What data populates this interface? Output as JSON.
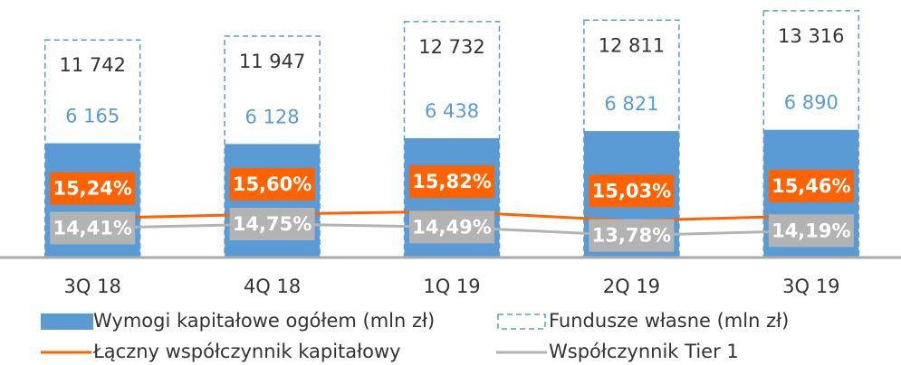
{
  "chart_data": {
    "type": "bar",
    "categories": [
      "3Q 18",
      "4Q 18",
      "1Q 19",
      "2Q 19",
      "3Q 19"
    ],
    "series": [
      {
        "name": "Wymogi kapitałowe ogółem (mln zł)",
        "color": "#5b9bd5",
        "values": [
          6165,
          6128,
          6438,
          6821,
          6890
        ],
        "value_labels": [
          "6 165",
          "6 128",
          "6 438",
          "6 821",
          "6 890"
        ]
      },
      {
        "name": "Fundusze własne (mln zł)",
        "color": "#5b9bd5",
        "style": "dashed",
        "values": [
          11742,
          11947,
          12732,
          12811,
          13316
        ],
        "value_labels": [
          "11 742",
          "11 947",
          "12 732",
          "12 811",
          "13 316"
        ]
      },
      {
        "name": "Łączny współczynnik kapitałowy",
        "color": "#ff6200",
        "type": "line",
        "axis": "y2",
        "values": [
          15.24,
          15.6,
          15.82,
          15.03,
          15.46
        ],
        "value_labels": [
          "15,24%",
          "15,60%",
          "15,82%",
          "15,03%",
          "15,46%"
        ]
      },
      {
        "name": "Współczynnik Tier 1",
        "color": "#b3b3b3",
        "type": "line",
        "axis": "y2",
        "values": [
          14.41,
          14.75,
          14.49,
          13.78,
          14.19
        ],
        "value_labels": [
          "14,41%",
          "14,75%",
          "14,49%",
          "13,78%",
          "14,19%"
        ]
      }
    ],
    "ylim": [
      0,
      13800
    ],
    "y2lim": [
      11.9,
      33.7
    ]
  }
}
